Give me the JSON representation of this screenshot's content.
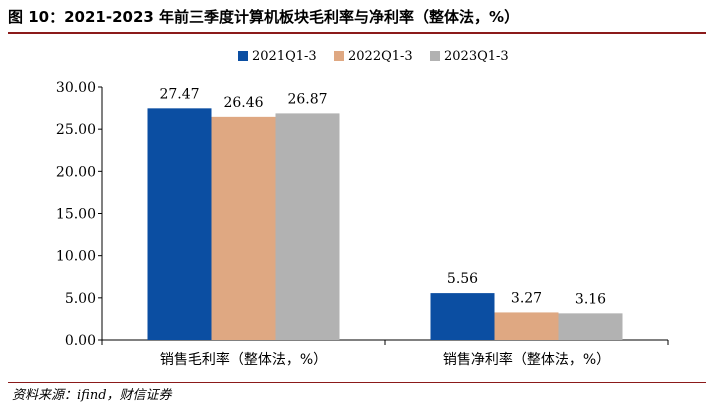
{
  "header": {
    "title": "图 10：2021-2023 年前三季度计算机板块毛利率与净利率（整体法，%）"
  },
  "footer": {
    "source": "资料来源：ifind，财信证券"
  },
  "colors": {
    "series_2021": "#0b4ea2",
    "series_2022": "#dfa882",
    "series_2023": "#b2b2b2",
    "title_rule": "#8b1a1a"
  },
  "chart_data": {
    "type": "bar",
    "title": "图 10：2021-2023 年前三季度计算机板块毛利率与净利率（整体法，%）",
    "categories": [
      "销售毛利率（整体法，%）",
      "销售净利率（整体法，%）"
    ],
    "series": [
      {
        "name": "2021Q1-3",
        "values": [
          27.47,
          5.56
        ],
        "labels": [
          "27.47",
          "5.56"
        ]
      },
      {
        "name": "2022Q1-3",
        "values": [
          26.46,
          3.27
        ],
        "labels": [
          "26.46",
          "3.27"
        ]
      },
      {
        "name": "2023Q1-3",
        "values": [
          26.87,
          3.16
        ],
        "labels": [
          "26.87",
          "3.16"
        ]
      }
    ],
    "ylim": [
      0,
      30
    ],
    "yticks": [
      "0.00",
      "5.00",
      "10.00",
      "15.00",
      "20.00",
      "25.00",
      "30.00"
    ],
    "xlabel": "",
    "ylabel": "",
    "grid": false,
    "legend_position": "top-center"
  }
}
